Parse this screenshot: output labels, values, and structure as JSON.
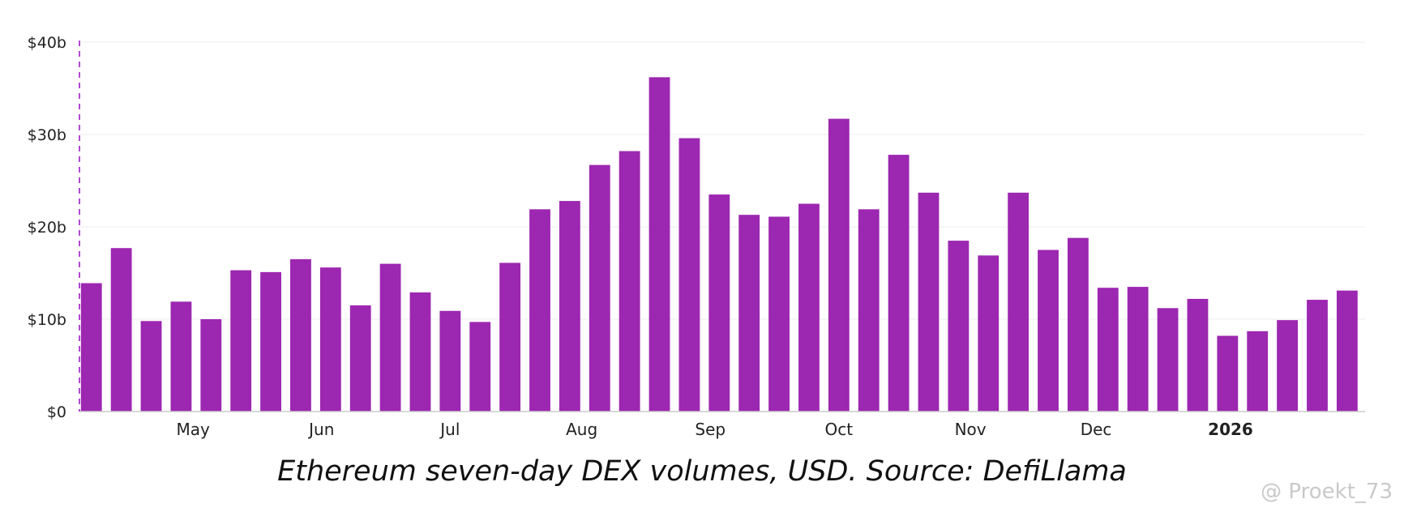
{
  "chart_data": {
    "type": "bar",
    "title": "",
    "xlabel": "",
    "ylabel": "",
    "ylim": [
      0,
      40
    ],
    "yticks": [
      {
        "value": 0,
        "label": "$0"
      },
      {
        "value": 10,
        "label": "$10b"
      },
      {
        "value": 20,
        "label": "$20b"
      },
      {
        "value": 30,
        "label": "$30b"
      },
      {
        "value": 40,
        "label": "$40b"
      }
    ],
    "month_labels": [
      {
        "label": "May",
        "after_bar": 3.8
      },
      {
        "label": "Jun",
        "after_bar": 8.1
      },
      {
        "label": "Jul",
        "after_bar": 12.4
      },
      {
        "label": "Aug",
        "after_bar": 16.8
      },
      {
        "label": "Sep",
        "after_bar": 21.1
      },
      {
        "label": "Oct",
        "after_bar": 25.4
      },
      {
        "label": "Nov",
        "after_bar": 29.8
      },
      {
        "label": "Dec",
        "after_bar": 34.0
      },
      {
        "label": "2026",
        "after_bar": 38.5,
        "bold": true
      }
    ],
    "grid": true,
    "bar_color": "#9c27b0",
    "values": [
      13.9,
      17.7,
      9.8,
      11.9,
      10.0,
      15.3,
      15.1,
      16.5,
      15.6,
      11.5,
      16.0,
      12.9,
      10.9,
      9.7,
      16.1,
      21.9,
      22.8,
      26.7,
      28.2,
      36.2,
      29.6,
      23.5,
      21.3,
      21.1,
      22.5,
      31.7,
      21.9,
      27.8,
      23.7,
      18.5,
      16.9,
      23.7,
      17.5,
      18.8,
      13.4,
      13.5,
      11.2,
      12.2,
      8.2,
      8.7,
      9.9,
      12.1,
      13.1
    ]
  },
  "caption": "Ethereum seven-day DEX volumes, USD. Source: DefiLlama",
  "watermark": "@ Proekt_73"
}
